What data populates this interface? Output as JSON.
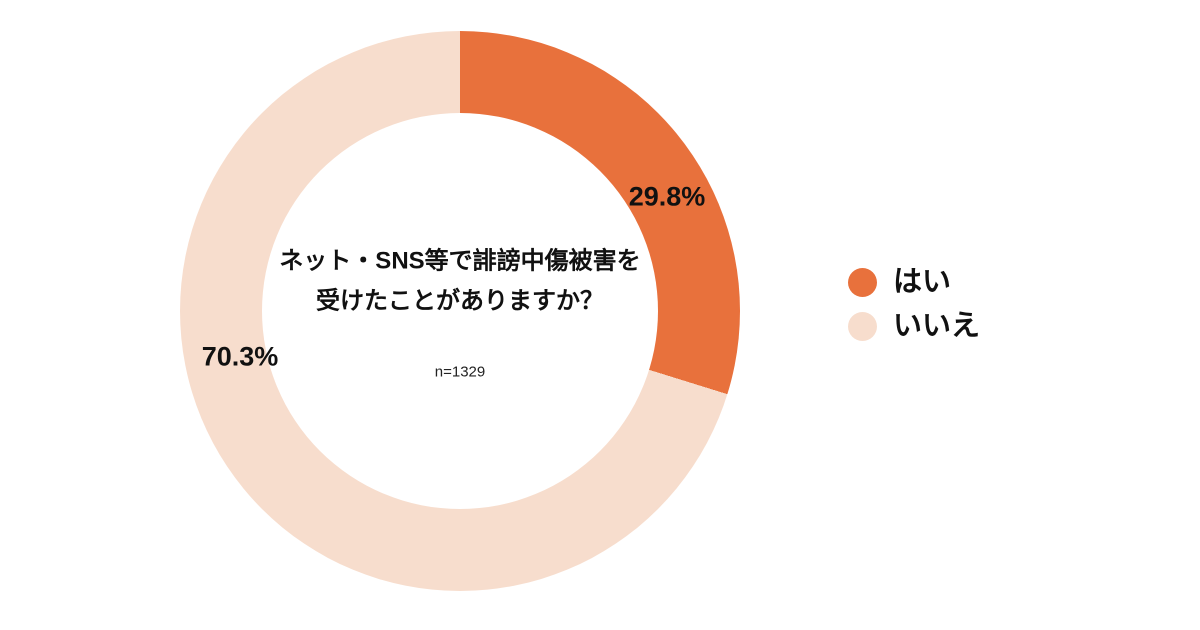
{
  "background_color": "#ffffff",
  "chart_data": {
    "type": "pie",
    "donut": true,
    "title": "ネット・SNS等で誹謗中傷被害を受けたことがありますか？",
    "title_lines": [
      "ネット・SNS等で誹謗中傷被害を",
      "受けたことがありますか？"
    ],
    "sample_size_label": "n=1329",
    "categories": [
      "はい",
      "いいえ"
    ],
    "values": [
      29.8,
      70.3
    ],
    "value_labels": [
      "29.8%",
      "70.3%"
    ],
    "colors": [
      "#e8713c",
      "#f7ddcd"
    ],
    "start_angle_deg": 0,
    "direction": "clockwise",
    "legend_position": "right",
    "text_color": "#111111"
  },
  "legend": {
    "items": [
      {
        "label": "はい",
        "color": "#e8713c"
      },
      {
        "label": "いいえ",
        "color": "#f7ddcd"
      }
    ]
  }
}
